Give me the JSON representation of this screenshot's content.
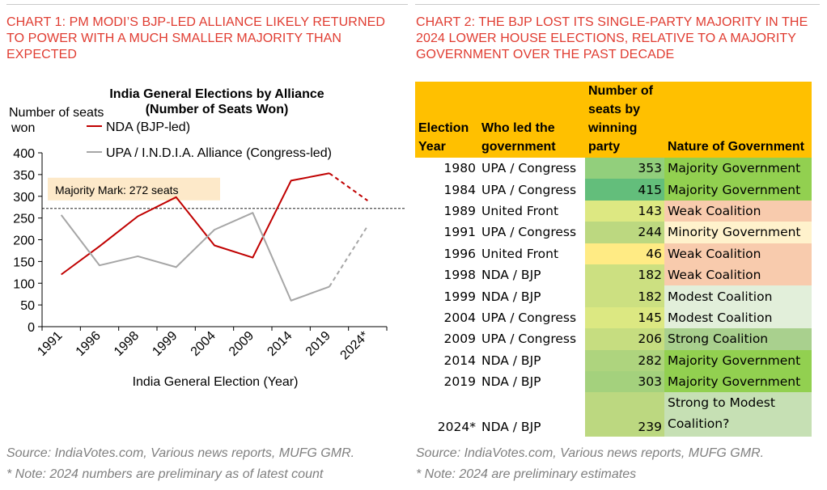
{
  "left": {
    "title": "CHART 1: PM MODI’S BJP-LED ALLIANCE LIKELY RETURNED TO POWER WITH A MUCH SMALLER MAJORITY THAN EXPECTED",
    "source": "Source: IndiaVotes.com, Various news reports, MUFG GMR.",
    "note": "* Note: 2024 numbers are preliminary as of latest count"
  },
  "right": {
    "title": "CHART 2: THE BJP LOST ITS SINGLE-PARTY MAJORITY IN THE 2024 LOWER HOUSE ELECTIONS, RELATIVE TO A MAJORITY GOVERNMENT OVER THE PAST DECADE",
    "source": "Source: IndiaVotes.com, Various news reports, MUFG GMR.",
    "note": "* Note: 2024 are preliminary estimates"
  },
  "chart_data": [
    {
      "type": "line",
      "title": "India General Elections by Alliance (Number of Seats Won)",
      "xlabel": "India General Election (Year)",
      "ylabel": "Number of seats won",
      "ylim": [
        0,
        400
      ],
      "yticks": [
        0,
        50,
        100,
        150,
        200,
        250,
        300,
        350,
        400
      ],
      "categories": [
        "1991",
        "1996",
        "1998",
        "1999",
        "2004",
        "2009",
        "2014",
        "2019",
        "2024*"
      ],
      "series": [
        {
          "name": "NDA (BJP-led)",
          "color": "#c00000",
          "values": [
            120,
            185,
            254,
            298,
            187,
            159,
            336,
            353,
            290
          ],
          "dashed_last_segment": true
        },
        {
          "name": "UPA / I.N.D.I.A. Alliance (Congress-led)",
          "color": "#a6a6a6",
          "values": [
            257,
            141,
            162,
            137,
            223,
            262,
            60,
            92,
            232
          ],
          "dashed_last_segment": true
        }
      ],
      "reference_line": {
        "value": 272,
        "label": "Majority Mark: 272 seats",
        "color": "#000000",
        "style": "dashed"
      },
      "legend": "top-right"
    },
    {
      "type": "table",
      "columns": [
        "Election Year",
        "Who led the government",
        "Number of seats by winning party",
        "Nature of Government"
      ],
      "rows": [
        {
          "year": "1980",
          "leader": "UPA / Congress",
          "seats": "353",
          "nature": "Majority Government",
          "seat_color": "#92cf7c",
          "nature_color": "#92d050"
        },
        {
          "year": "1984",
          "leader": "UPA / Congress",
          "seats": "415",
          "nature": "Majority Government",
          "seat_color": "#63be7b",
          "nature_color": "#92d050"
        },
        {
          "year": "1989",
          "leader": "United Front",
          "seats": "143",
          "nature": "Weak Coalition",
          "seat_color": "#dde882",
          "nature_color": "#f8cbad"
        },
        {
          "year": "1991",
          "leader": "UPA / Congress",
          "seats": "244",
          "nature": "Minority Government",
          "seat_color": "#bcd880",
          "nature_color": "#fff2cc"
        },
        {
          "year": "1996",
          "leader": "United Front",
          "seats": "46",
          "nature": "Weak Coalition",
          "seat_color": "#ffeb84",
          "nature_color": "#f8cbad"
        },
        {
          "year": "1998",
          "leader": "NDA / BJP",
          "seats": "182",
          "nature": "Weak Coalition",
          "seat_color": "#cce081",
          "nature_color": "#f8cbad"
        },
        {
          "year": "1999",
          "leader": "NDA / BJP",
          "seats": "182",
          "nature": "Modest Coalition",
          "seat_color": "#cce081",
          "nature_color": "#e2efda"
        },
        {
          "year": "2004",
          "leader": "UPA / Congress",
          "seats": "145",
          "nature": "Modest Coalition",
          "seat_color": "#dce882",
          "nature_color": "#e2efda"
        },
        {
          "year": "2009",
          "leader": "UPA / Congress",
          "seats": "206",
          "nature": "Strong Coalition",
          "seat_color": "#c6dd80",
          "nature_color": "#a9d08e"
        },
        {
          "year": "2014",
          "leader": "NDA / BJP",
          "seats": "282",
          "nature": "Majority Government",
          "seat_color": "#aed47e",
          "nature_color": "#92d050"
        },
        {
          "year": "2019",
          "leader": "NDA / BJP",
          "seats": "303",
          "nature": "Majority Government",
          "seat_color": "#a4d17d",
          "nature_color": "#92d050"
        },
        {
          "year": "2024*",
          "leader": "NDA / BJP",
          "seats": "239",
          "nature": "Strong to Modest Coalition?",
          "seat_color": "#bcd880",
          "nature_color": "#c6e0b4"
        }
      ]
    }
  ]
}
